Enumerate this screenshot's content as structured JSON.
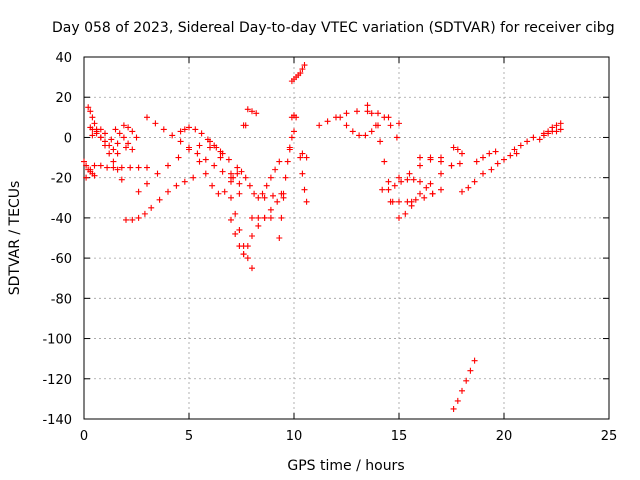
{
  "chart_data": {
    "type": "scatter",
    "title": "Day 058 of 2023, Sidereal Day-to-day VTEC variation (SDTVAR) for receiver cibg",
    "xlabel": "GPS time / hours",
    "ylabel": "SDTVAR / TECUs",
    "xlim": [
      0,
      25
    ],
    "ylim": [
      -140,
      40
    ],
    "xticks": [
      0,
      5,
      10,
      15,
      20,
      25
    ],
    "yticks": [
      -140,
      -120,
      -100,
      -80,
      -60,
      -40,
      -20,
      0,
      20,
      40
    ],
    "xtick_labels": [
      "0",
      "5",
      "10",
      "15",
      "20",
      "25"
    ],
    "ytick_labels": [
      "-140",
      "-120",
      "-100",
      "-80",
      "-60",
      "-40",
      "-20",
      "0",
      "20",
      "40"
    ],
    "grid": true,
    "marker": "+",
    "color": "#ff0000",
    "series": [
      {
        "name": "s1",
        "x": [
          0.2,
          0.3,
          0.4,
          0.5,
          0.6,
          0.8,
          1.0,
          1.2,
          1.4,
          1.6,
          1.8
        ],
        "y": [
          15,
          13,
          10,
          7,
          4,
          0,
          -4,
          -8,
          -12,
          -16,
          -21
        ]
      },
      {
        "name": "s2",
        "x": [
          0.1,
          0.3,
          0.5,
          0.8,
          1.1,
          1.4,
          1.8,
          2.2,
          2.6,
          3.0
        ],
        "y": [
          -20,
          -16,
          -14,
          -14,
          -15,
          -15,
          -15,
          -15,
          -15,
          -15
        ]
      },
      {
        "name": "s3",
        "x": [
          0.3,
          0.4,
          0.6,
          0.8,
          1.0,
          1.2,
          1.4,
          1.6
        ],
        "y": [
          5,
          4,
          2,
          0,
          -2,
          -4,
          -6,
          -8
        ]
      },
      {
        "name": "s4",
        "x": [
          0.4,
          0.6,
          0.8,
          1.0,
          1.3,
          1.6,
          2.0
        ],
        "y": [
          1,
          3,
          4,
          2,
          -1,
          -3,
          -5
        ]
      },
      {
        "name": "s5",
        "x": [
          1.5,
          1.7,
          1.9,
          2.1,
          2.3
        ],
        "y": [
          4,
          2,
          0,
          -3,
          -6
        ]
      },
      {
        "name": "s6",
        "x": [
          1.9,
          2.1,
          2.3,
          2.5
        ],
        "y": [
          6,
          5,
          3,
          0
        ]
      },
      {
        "name": "s7",
        "x": [
          0.0,
          0.1,
          0.2,
          0.3,
          0.4,
          0.5
        ],
        "y": [
          -12,
          -14,
          -16,
          -17,
          -18,
          -19
        ]
      },
      {
        "name": "s8",
        "x": [
          2.0,
          2.3,
          2.6,
          2.9,
          3.2,
          3.6,
          4.0,
          4.4,
          4.8,
          5.2
        ],
        "y": [
          -41,
          -41,
          -40,
          -38,
          -35,
          -31,
          -27,
          -24,
          -22,
          -20
        ]
      },
      {
        "name": "s9",
        "x": [
          3.0,
          3.4,
          3.8,
          4.2,
          4.6,
          5.0,
          5.4,
          5.8,
          6.2,
          6.6,
          7.0,
          7.4
        ],
        "y": [
          10,
          7,
          4,
          1,
          -2,
          -5,
          -8,
          -11,
          -14,
          -17,
          -20,
          -23
        ]
      },
      {
        "name": "s10",
        "x": [
          4.6,
          4.8,
          5.0,
          5.3,
          5.6,
          5.9,
          6.2,
          6.5
        ],
        "y": [
          3,
          4,
          5,
          4,
          2,
          -1,
          -4,
          -7
        ]
      },
      {
        "name": "s11",
        "x": [
          2.6,
          3.0,
          3.5,
          4.0,
          4.5,
          5.0,
          5.5,
          6.0,
          6.5,
          7.0,
          7.4
        ],
        "y": [
          -27,
          -23,
          -18,
          -14,
          -10,
          -6,
          -4,
          -5,
          -10,
          -18,
          -28
        ]
      },
      {
        "name": "s12",
        "x": [
          5.5,
          5.8,
          6.1,
          6.4,
          6.7,
          7.0,
          7.3
        ],
        "y": [
          -12,
          -18,
          -24,
          -28,
          -27,
          -22,
          -15
        ]
      },
      {
        "name": "s13",
        "x": [
          6.0,
          6.3,
          6.6,
          6.9
        ],
        "y": [
          -2,
          -5,
          -8,
          -11
        ]
      },
      {
        "name": "s14",
        "x": [
          7.0,
          7.2,
          7.4,
          7.6,
          7.8,
          8.0
        ],
        "y": [
          -30,
          -38,
          -46,
          -54,
          -60,
          -65
        ]
      },
      {
        "name": "s15",
        "x": [
          7.1,
          7.3,
          7.5,
          7.7,
          7.9,
          8.1,
          8.3,
          8.6,
          9.0,
          9.4
        ],
        "y": [
          -20,
          -18,
          -17,
          -20,
          -24,
          -28,
          -30,
          -30,
          -29,
          -28
        ]
      },
      {
        "name": "s16",
        "x": [
          7.6,
          7.8,
          8.0,
          8.3,
          8.6,
          8.9,
          9.2,
          9.5
        ],
        "y": [
          -58,
          -54,
          -49,
          -44,
          -40,
          -36,
          -32,
          -28
        ]
      },
      {
        "name": "s17",
        "x": [
          7.0,
          7.2,
          7.4,
          7.6
        ],
        "y": [
          -41,
          -48,
          -54,
          -58
        ]
      },
      {
        "name": "s18",
        "x": [
          8.0,
          8.3,
          8.6,
          8.9
        ],
        "y": [
          -40,
          -40,
          -40,
          -40
        ]
      },
      {
        "name": "s19",
        "x": [
          7.8,
          8.0,
          8.2
        ],
        "y": [
          14,
          13,
          12
        ]
      },
      {
        "name": "s20",
        "x": [
          7.6,
          7.7
        ],
        "y": [
          6,
          6
        ]
      },
      {
        "name": "s21",
        "x": [
          8.5,
          8.7,
          8.9,
          9.1,
          9.3
        ],
        "y": [
          -28,
          -24,
          -20,
          -16,
          -12
        ]
      },
      {
        "name": "s22",
        "x": [
          9.3,
          9.4,
          9.5,
          9.6,
          9.7,
          9.8
        ],
        "y": [
          -50,
          -40,
          -30,
          -20,
          -12,
          -6
        ]
      },
      {
        "name": "s23",
        "x": [
          9.8,
          9.9,
          10.0
        ],
        "y": [
          -5,
          0,
          3
        ]
      },
      {
        "name": "s24",
        "x": [
          9.9,
          10.0,
          10.1
        ],
        "y": [
          10,
          11,
          10
        ]
      },
      {
        "name": "s25",
        "x": [
          9.9,
          10.0,
          10.1,
          10.2
        ],
        "y": [
          28,
          29,
          30,
          31
        ]
      },
      {
        "name": "s26",
        "x": [
          10.3,
          10.4,
          10.5
        ],
        "y": [
          32,
          34,
          36
        ]
      },
      {
        "name": "s27",
        "x": [
          10.3,
          10.4,
          10.5,
          10.6
        ],
        "y": [
          -10,
          -18,
          -26,
          -32
        ]
      },
      {
        "name": "s28",
        "x": [
          10.4,
          10.6
        ],
        "y": [
          -8,
          -10
        ]
      },
      {
        "name": "s29",
        "x": [
          11.2,
          11.6,
          12.0,
          12.5,
          13.0,
          13.5,
          14.0,
          14.5,
          15.0
        ],
        "y": [
          6,
          8,
          10,
          12,
          13,
          13,
          12,
          10,
          7
        ]
      },
      {
        "name": "s30",
        "x": [
          12.2,
          12.5,
          12.8,
          13.1,
          13.4,
          13.7,
          14.0,
          14.3,
          14.6,
          14.9
        ],
        "y": [
          10,
          6,
          3,
          1,
          1,
          3,
          6,
          10,
          6,
          0
        ]
      },
      {
        "name": "s31",
        "x": [
          13.5,
          13.7,
          13.9,
          14.1,
          14.3,
          14.5,
          14.7,
          15.0,
          15.3,
          15.6
        ],
        "y": [
          16,
          12,
          6,
          -2,
          -12,
          -22,
          -32,
          -40,
          -38,
          -34
        ]
      },
      {
        "name": "s32",
        "x": [
          14.2,
          14.5,
          14.8,
          15.1,
          15.4,
          15.7,
          16.0,
          16.3,
          16.6
        ],
        "y": [
          -26,
          -26,
          -24,
          -22,
          -21,
          -21,
          -22,
          -25,
          -28
        ]
      },
      {
        "name": "s33",
        "x": [
          14.6,
          15.0,
          15.4,
          15.8,
          16.2,
          16.6,
          17.0
        ],
        "y": [
          -32,
          -32,
          -32,
          -31,
          -30,
          -28,
          -26
        ]
      },
      {
        "name": "s34",
        "x": [
          15.0,
          15.5,
          16.0,
          16.5,
          17.0
        ],
        "y": [
          -20,
          -18,
          -14,
          -11,
          -10
        ]
      },
      {
        "name": "s35",
        "x": [
          15.6,
          16.0,
          16.5,
          17.0,
          17.5,
          17.9
        ],
        "y": [
          -32,
          -28,
          -23,
          -18,
          -14,
          -13
        ]
      },
      {
        "name": "s36",
        "x": [
          16.0,
          16.5,
          17.0,
          17.5
        ],
        "y": [
          -10,
          -10,
          -12,
          -14
        ]
      },
      {
        "name": "s37",
        "x": [
          17.6,
          17.8,
          18.0
        ],
        "y": [
          -5,
          -6,
          -8
        ]
      },
      {
        "name": "s38",
        "x": [
          18.0,
          18.3,
          18.6,
          19.0
        ],
        "y": [
          -27,
          -25,
          -22,
          -18
        ]
      },
      {
        "name": "s39",
        "x": [
          18.7,
          19.0,
          19.3,
          19.6
        ],
        "y": [
          -12,
          -10,
          -8,
          -7
        ]
      },
      {
        "name": "s40",
        "x": [
          19.4,
          19.7,
          20.0,
          20.3,
          20.6
        ],
        "y": [
          -16,
          -13,
          -11,
          -9,
          -8
        ]
      },
      {
        "name": "s41",
        "x": [
          20.5,
          20.8,
          21.1,
          21.4
        ],
        "y": [
          -6,
          -4,
          -2,
          0
        ]
      },
      {
        "name": "s42",
        "x": [
          21.7,
          21.9,
          22.1,
          22.3,
          22.5,
          22.7
        ],
        "y": [
          -1,
          1,
          3,
          5,
          6,
          7
        ]
      },
      {
        "name": "s43",
        "x": [
          21.9,
          22.1,
          22.3,
          22.5,
          22.7
        ],
        "y": [
          2,
          2,
          3,
          3,
          4
        ]
      },
      {
        "name": "s44",
        "x": [
          17.6,
          17.8,
          18.0,
          18.2,
          18.4,
          18.6
        ],
        "y": [
          -135,
          -131,
          -126,
          -121,
          -116,
          -111
        ]
      }
    ]
  }
}
